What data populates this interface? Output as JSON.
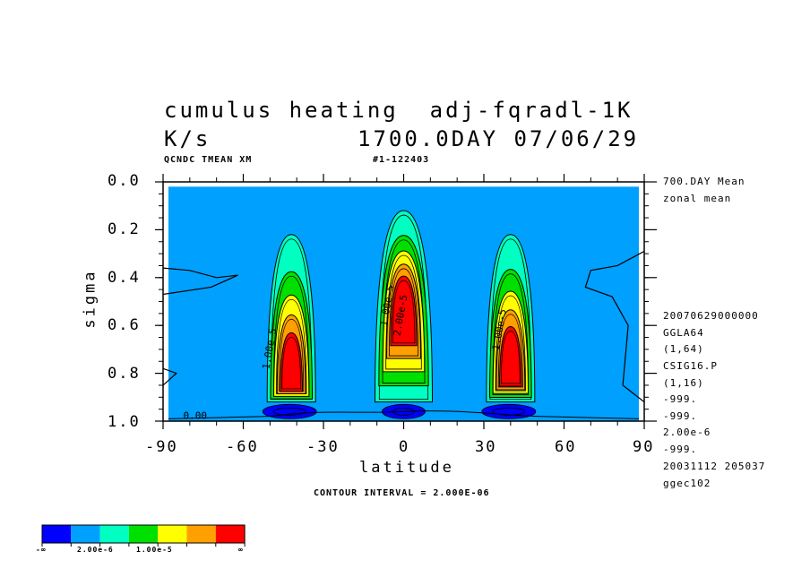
{
  "chart_data": {
    "type": "contour",
    "title_line1": "cumulus heating  adj-fqradl-1K",
    "title_line2_left": "K/s",
    "title_line2_right": "1700.0DAY 07/06/29",
    "sub_left": "QCNDC TMEAN XM",
    "sub_right": "#1-122403",
    "xlabel": "latitude",
    "ylabel": "sigma",
    "xlim": [
      -90,
      90
    ],
    "ylim": [
      1.0,
      0.0
    ],
    "x_ticks": [
      "-90",
      "-60",
      "-30",
      "0",
      "30",
      "60",
      "90"
    ],
    "y_ticks": [
      "0.0",
      "0.2",
      "0.4",
      "0.6",
      "0.8",
      "1.0"
    ],
    "contour_interval_text": "CONTOUR INTERVAL = 2.000E-06",
    "contour_labels": [
      "1.00e-5",
      "1.00e-5",
      "2.00e-5",
      "1.00e-5",
      "0.00"
    ],
    "legend": {
      "colors": [
        "#0000ff",
        "#00a0ff",
        "#00ffc0",
        "#00e000",
        "#ffff00",
        "#ffa000",
        "#ff0000"
      ],
      "labels": [
        "-∞",
        "2.00e-6",
        "1.00e-5",
        "∞"
      ]
    },
    "side_info": {
      "top": [
        "700.DAY Mean",
        "zonal mean"
      ],
      "bottom": [
        "20070629000000",
        "GGLA64",
        "(1,64)",
        "CSIG16.P",
        "(1,16)",
        "-999.",
        "-999.",
        "2.00e-6",
        "-999.",
        "20031112 205037",
        "ggec102"
      ]
    },
    "features": [
      {
        "lat": -42,
        "sigma_top": 0.22,
        "sigma_bottom": 0.92,
        "peak_sigma": 0.78,
        "max_level": 6
      },
      {
        "lat": 0,
        "sigma_top": 0.12,
        "sigma_bottom": 0.92,
        "peak_sigma": 0.52,
        "max_level": 6
      },
      {
        "lat": 40,
        "sigma_top": 0.22,
        "sigma_bottom": 0.92,
        "peak_sigma": 0.75,
        "max_level": 6
      }
    ]
  }
}
